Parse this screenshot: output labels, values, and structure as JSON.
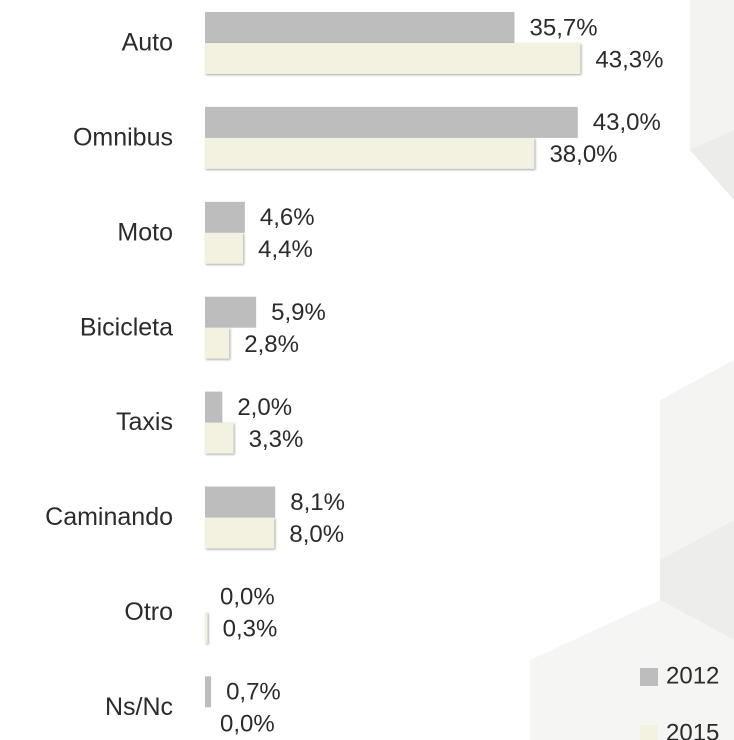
{
  "chart_data": {
    "type": "bar",
    "orientation": "horizontal",
    "categories": [
      "Auto",
      "Omnibus",
      "Moto",
      "Bicicleta",
      "Taxis",
      "Caminando",
      "Otro",
      "Ns/Nc"
    ],
    "series": [
      {
        "name": "2012",
        "color": "#bdbdbd",
        "values": [
          35.7,
          43.0,
          4.6,
          5.9,
          2.0,
          8.1,
          0.0,
          0.7
        ],
        "value_labels": [
          "35,7%",
          "43,0%",
          "4,6%",
          "5,9%",
          "2,0%",
          "8,1%",
          "0,0%",
          "0,7%"
        ]
      },
      {
        "name": "2015",
        "color": "#f3f1e0",
        "values": [
          43.3,
          38.0,
          4.4,
          2.8,
          3.3,
          8.0,
          0.3,
          0.0
        ],
        "value_labels": [
          "43,3%",
          "38,0%",
          "4,4%",
          "2,8%",
          "3,3%",
          "8,0%",
          "0,3%",
          "0,0%"
        ]
      }
    ]
  }
}
